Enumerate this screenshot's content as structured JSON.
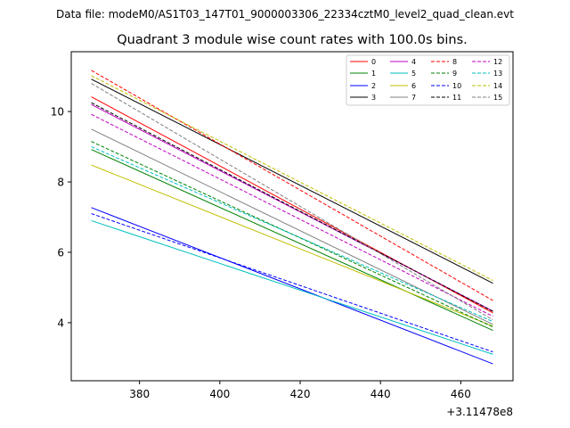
{
  "page": {
    "suptitle": "Data file: modeM0/AS1T03_147T01_9000003306_22334cztM0_level2_quad_clean.evt"
  },
  "chart_data": {
    "type": "line",
    "title": "Quadrant 3 module wise count rates with 100.0s bins.",
    "xlabel": "",
    "ylabel": "",
    "x_offset_label": "+3.11478e8",
    "xlim": [
      363,
      473
    ],
    "ylim": [
      2.35,
      11.7
    ],
    "xticks": [
      380,
      400,
      420,
      440,
      460
    ],
    "yticks": [
      4,
      6,
      8,
      10
    ],
    "x": [
      368,
      468
    ],
    "legend_position": "top-right",
    "legend_columns": 4,
    "series": [
      {
        "name": "0",
        "color": "#ff0000",
        "dash": "solid",
        "values": [
          10.42,
          4.28
        ]
      },
      {
        "name": "1",
        "color": "#008000",
        "dash": "solid",
        "values": [
          8.92,
          3.78
        ]
      },
      {
        "name": "2",
        "color": "#0000ff",
        "dash": "solid",
        "values": [
          7.27,
          2.83
        ]
      },
      {
        "name": "3",
        "color": "#000000",
        "dash": "solid",
        "values": [
          10.92,
          5.12
        ]
      },
      {
        "name": "4",
        "color": "#bf00bf",
        "dash": "solid",
        "values": [
          10.2,
          4.33
        ]
      },
      {
        "name": "5",
        "color": "#00bfbf",
        "dash": "solid",
        "values": [
          6.9,
          3.1
        ]
      },
      {
        "name": "6",
        "color": "#bfbf00",
        "dash": "solid",
        "values": [
          8.48,
          3.9
        ]
      },
      {
        "name": "7",
        "color": "#808080",
        "dash": "solid",
        "values": [
          9.5,
          3.95
        ]
      },
      {
        "name": "8",
        "color": "#ff0000",
        "dash": "dashed",
        "values": [
          11.17,
          4.63
        ]
      },
      {
        "name": "9",
        "color": "#008000",
        "dash": "dashed",
        "values": [
          9.15,
          3.88
        ]
      },
      {
        "name": "10",
        "color": "#0000ff",
        "dash": "dashed",
        "values": [
          7.1,
          3.17
        ]
      },
      {
        "name": "11",
        "color": "#000000",
        "dash": "dashed",
        "values": [
          10.25,
          4.32
        ]
      },
      {
        "name": "12",
        "color": "#bf00bf",
        "dash": "dashed",
        "values": [
          9.92,
          4.18
        ]
      },
      {
        "name": "13",
        "color": "#00bfbf",
        "dash": "dashed",
        "values": [
          9.0,
          4.03
        ]
      },
      {
        "name": "14",
        "color": "#bfbf00",
        "dash": "dashed",
        "values": [
          11.02,
          5.2
        ]
      },
      {
        "name": "15",
        "color": "#808080",
        "dash": "dashed",
        "values": [
          10.8,
          4.08
        ]
      }
    ]
  }
}
